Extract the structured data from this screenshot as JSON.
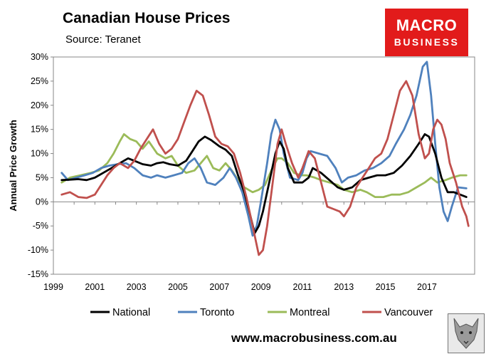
{
  "header": {
    "title": "Canadian House Prices",
    "subtitle": "Source: Teranet"
  },
  "logo": {
    "line1": "MACRO",
    "line2": "BUSINESS"
  },
  "footer": {
    "url": "www.macrobusiness.com.au"
  },
  "colors": {
    "National": "#000000",
    "Toronto": "#4f81bd",
    "Montreal": "#9bbb59",
    "Vancouver": "#c0504d",
    "logo_bg": "#e21b1b"
  },
  "chart_data": {
    "type": "line",
    "title": "Canadian House Prices",
    "ylabel": "Annual Price Growth",
    "xlabel": "",
    "xlim": [
      1999.0,
      2019.3
    ],
    "ylim": [
      -15,
      30
    ],
    "x_ticks": [
      1999,
      2001,
      2003,
      2005,
      2007,
      2009,
      2011,
      2013,
      2015,
      2017
    ],
    "x_tick_labels": [
      "1999",
      "2001",
      "2003",
      "2005",
      "2007",
      "2009",
      "2011",
      "2013",
      "2015",
      "2017"
    ],
    "y_ticks": [
      -15,
      -10,
      -5,
      0,
      5,
      10,
      15,
      20,
      25,
      30
    ],
    "y_tick_labels": [
      "-15%",
      "-10%",
      "-5%",
      "0%",
      "5%",
      "10%",
      "15%",
      "20%",
      "25%",
      "30%"
    ],
    "legend_position": "bottom",
    "grid": false,
    "series": [
      {
        "name": "National",
        "points": [
          [
            1999.4,
            4.5
          ],
          [
            1999.8,
            4.6
          ],
          [
            2000.2,
            4.7
          ],
          [
            2000.6,
            4.5
          ],
          [
            2001.0,
            5.0
          ],
          [
            2001.4,
            6.0
          ],
          [
            2001.8,
            7.0
          ],
          [
            2002.2,
            8.0
          ],
          [
            2002.6,
            9.0
          ],
          [
            2002.9,
            8.5
          ],
          [
            2003.3,
            7.8
          ],
          [
            2003.7,
            7.5
          ],
          [
            2004.0,
            8.0
          ],
          [
            2004.3,
            8.2
          ],
          [
            2004.6,
            7.8
          ],
          [
            2005.0,
            7.5
          ],
          [
            2005.4,
            8.5
          ],
          [
            2005.7,
            10.5
          ],
          [
            2006.0,
            12.5
          ],
          [
            2006.3,
            13.5
          ],
          [
            2006.6,
            12.8
          ],
          [
            2007.0,
            11.5
          ],
          [
            2007.3,
            10.8
          ],
          [
            2007.6,
            9.5
          ],
          [
            2007.9,
            5.5
          ],
          [
            2008.2,
            2.0
          ],
          [
            2008.5,
            -3.0
          ],
          [
            2008.7,
            -6.5
          ],
          [
            2008.9,
            -5.0
          ],
          [
            2009.1,
            -2.0
          ],
          [
            2009.4,
            4.0
          ],
          [
            2009.7,
            10.0
          ],
          [
            2009.9,
            12.5
          ],
          [
            2010.1,
            11.0
          ],
          [
            2010.3,
            7.0
          ],
          [
            2010.6,
            4.0
          ],
          [
            2011.0,
            4.0
          ],
          [
            2011.3,
            5.0
          ],
          [
            2011.5,
            7.0
          ],
          [
            2011.9,
            6.0
          ],
          [
            2012.3,
            4.5
          ],
          [
            2012.7,
            3.0
          ],
          [
            2013.0,
            2.5
          ],
          [
            2013.4,
            3.0
          ],
          [
            2013.8,
            4.5
          ],
          [
            2014.2,
            5.0
          ],
          [
            2014.6,
            5.5
          ],
          [
            2015.0,
            5.5
          ],
          [
            2015.4,
            6.0
          ],
          [
            2015.8,
            7.5
          ],
          [
            2016.2,
            9.5
          ],
          [
            2016.6,
            12.0
          ],
          [
            2016.9,
            14.0
          ],
          [
            2017.1,
            13.5
          ],
          [
            2017.4,
            10.0
          ],
          [
            2017.7,
            5.0
          ],
          [
            2018.0,
            2.0
          ],
          [
            2018.3,
            2.0
          ],
          [
            2018.6,
            1.5
          ],
          [
            2018.9,
            1.0
          ]
        ]
      },
      {
        "name": "Toronto",
        "points": [
          [
            1999.4,
            6.0
          ],
          [
            1999.7,
            4.5
          ],
          [
            2000.1,
            5.0
          ],
          [
            2000.5,
            5.5
          ],
          [
            2000.9,
            6.0
          ],
          [
            2001.3,
            7.0
          ],
          [
            2001.7,
            7.5
          ],
          [
            2002.1,
            7.8
          ],
          [
            2002.5,
            8.0
          ],
          [
            2002.9,
            7.0
          ],
          [
            2003.3,
            5.5
          ],
          [
            2003.7,
            5.0
          ],
          [
            2004.0,
            5.5
          ],
          [
            2004.4,
            5.0
          ],
          [
            2004.8,
            5.5
          ],
          [
            2005.2,
            6.0
          ],
          [
            2005.5,
            8.0
          ],
          [
            2005.8,
            9.0
          ],
          [
            2006.1,
            7.0
          ],
          [
            2006.4,
            4.0
          ],
          [
            2006.8,
            3.5
          ],
          [
            2007.2,
            5.0
          ],
          [
            2007.5,
            7.0
          ],
          [
            2007.8,
            5.0
          ],
          [
            2008.1,
            2.0
          ],
          [
            2008.4,
            -3.0
          ],
          [
            2008.6,
            -7.0
          ],
          [
            2008.8,
            -5.0
          ],
          [
            2009.0,
            0.0
          ],
          [
            2009.3,
            8.0
          ],
          [
            2009.5,
            14.0
          ],
          [
            2009.7,
            17.0
          ],
          [
            2009.9,
            15.0
          ],
          [
            2010.1,
            10.0
          ],
          [
            2010.4,
            5.0
          ],
          [
            2010.8,
            4.5
          ],
          [
            2011.0,
            6.0
          ],
          [
            2011.2,
            9.0
          ],
          [
            2011.4,
            10.5
          ],
          [
            2011.8,
            10.0
          ],
          [
            2012.2,
            9.5
          ],
          [
            2012.6,
            7.0
          ],
          [
            2012.9,
            4.0
          ],
          [
            2013.2,
            5.0
          ],
          [
            2013.6,
            5.5
          ],
          [
            2014.0,
            6.5
          ],
          [
            2014.4,
            7.0
          ],
          [
            2014.8,
            8.0
          ],
          [
            2015.2,
            9.5
          ],
          [
            2015.5,
            12.0
          ],
          [
            2015.9,
            15.0
          ],
          [
            2016.2,
            18.0
          ],
          [
            2016.5,
            22.0
          ],
          [
            2016.8,
            28.0
          ],
          [
            2017.0,
            29.0
          ],
          [
            2017.2,
            22.0
          ],
          [
            2017.4,
            12.0
          ],
          [
            2017.6,
            3.0
          ],
          [
            2017.8,
            -2.0
          ],
          [
            2018.0,
            -4.0
          ],
          [
            2018.2,
            -1.0
          ],
          [
            2018.5,
            3.0
          ],
          [
            2018.9,
            2.8
          ]
        ]
      },
      {
        "name": "Montreal",
        "points": [
          [
            1999.4,
            4.0
          ],
          [
            1999.8,
            5.0
          ],
          [
            2000.3,
            5.5
          ],
          [
            2000.8,
            6.0
          ],
          [
            2001.2,
            6.5
          ],
          [
            2001.6,
            8.0
          ],
          [
            2001.9,
            10.0
          ],
          [
            2002.2,
            12.5
          ],
          [
            2002.4,
            14.0
          ],
          [
            2002.7,
            13.0
          ],
          [
            2003.0,
            12.5
          ],
          [
            2003.3,
            11.0
          ],
          [
            2003.6,
            12.5
          ],
          [
            2004.0,
            10.0
          ],
          [
            2004.4,
            9.0
          ],
          [
            2004.7,
            9.5
          ],
          [
            2005.0,
            7.5
          ],
          [
            2005.4,
            6.0
          ],
          [
            2005.8,
            6.5
          ],
          [
            2006.1,
            8.0
          ],
          [
            2006.4,
            9.5
          ],
          [
            2006.7,
            7.0
          ],
          [
            2007.0,
            6.5
          ],
          [
            2007.3,
            8.0
          ],
          [
            2007.6,
            6.5
          ],
          [
            2007.9,
            4.5
          ],
          [
            2008.2,
            3.0
          ],
          [
            2008.6,
            2.0
          ],
          [
            2008.9,
            2.5
          ],
          [
            2009.2,
            3.5
          ],
          [
            2009.5,
            6.5
          ],
          [
            2009.8,
            9.0
          ],
          [
            2010.0,
            9.0
          ],
          [
            2010.3,
            8.0
          ],
          [
            2010.6,
            6.0
          ],
          [
            2010.9,
            5.5
          ],
          [
            2011.2,
            5.5
          ],
          [
            2011.6,
            5.0
          ],
          [
            2011.9,
            4.5
          ],
          [
            2012.3,
            4.0
          ],
          [
            2012.7,
            3.5
          ],
          [
            2013.0,
            2.5
          ],
          [
            2013.4,
            2.0
          ],
          [
            2013.8,
            2.5
          ],
          [
            2014.1,
            2.0
          ],
          [
            2014.5,
            1.0
          ],
          [
            2014.9,
            1.0
          ],
          [
            2015.3,
            1.5
          ],
          [
            2015.7,
            1.5
          ],
          [
            2016.1,
            2.0
          ],
          [
            2016.5,
            3.0
          ],
          [
            2016.9,
            4.0
          ],
          [
            2017.2,
            5.0
          ],
          [
            2017.5,
            4.0
          ],
          [
            2017.9,
            4.5
          ],
          [
            2018.2,
            5.0
          ],
          [
            2018.6,
            5.5
          ],
          [
            2018.9,
            5.5
          ]
        ]
      },
      {
        "name": "Vancouver",
        "points": [
          [
            1999.4,
            1.5
          ],
          [
            1999.8,
            2.0
          ],
          [
            2000.2,
            1.0
          ],
          [
            2000.6,
            0.8
          ],
          [
            2001.0,
            1.5
          ],
          [
            2001.3,
            3.5
          ],
          [
            2001.6,
            5.5
          ],
          [
            2001.9,
            7.0
          ],
          [
            2002.2,
            8.0
          ],
          [
            2002.6,
            7.0
          ],
          [
            2002.9,
            8.5
          ],
          [
            2003.2,
            11.0
          ],
          [
            2003.5,
            13.0
          ],
          [
            2003.8,
            15.0
          ],
          [
            2004.1,
            12.0
          ],
          [
            2004.4,
            10.0
          ],
          [
            2004.7,
            11.0
          ],
          [
            2005.0,
            13.0
          ],
          [
            2005.3,
            16.5
          ],
          [
            2005.6,
            20.0
          ],
          [
            2005.9,
            23.0
          ],
          [
            2006.2,
            22.0
          ],
          [
            2006.5,
            18.0
          ],
          [
            2006.8,
            13.5
          ],
          [
            2007.1,
            12.0
          ],
          [
            2007.4,
            11.5
          ],
          [
            2007.7,
            10.0
          ],
          [
            2008.0,
            6.0
          ],
          [
            2008.3,
            1.0
          ],
          [
            2008.6,
            -5.0
          ],
          [
            2008.9,
            -11.0
          ],
          [
            2009.1,
            -10.0
          ],
          [
            2009.3,
            -5.0
          ],
          [
            2009.6,
            5.0
          ],
          [
            2009.8,
            12.0
          ],
          [
            2010.0,
            15.0
          ],
          [
            2010.2,
            12.0
          ],
          [
            2010.5,
            8.0
          ],
          [
            2010.8,
            5.0
          ],
          [
            2011.0,
            7.0
          ],
          [
            2011.3,
            10.5
          ],
          [
            2011.6,
            9.0
          ],
          [
            2011.9,
            4.0
          ],
          [
            2012.2,
            -1.0
          ],
          [
            2012.5,
            -1.5
          ],
          [
            2012.8,
            -2.0
          ],
          [
            2013.0,
            -3.0
          ],
          [
            2013.3,
            -1.0
          ],
          [
            2013.6,
            3.0
          ],
          [
            2013.9,
            5.0
          ],
          [
            2014.2,
            7.0
          ],
          [
            2014.5,
            9.0
          ],
          [
            2014.8,
            10.0
          ],
          [
            2015.1,
            13.0
          ],
          [
            2015.4,
            18.0
          ],
          [
            2015.7,
            23.0
          ],
          [
            2016.0,
            25.0
          ],
          [
            2016.3,
            22.0
          ],
          [
            2016.6,
            14.0
          ],
          [
            2016.9,
            9.0
          ],
          [
            2017.1,
            10.0
          ],
          [
            2017.3,
            15.0
          ],
          [
            2017.5,
            17.0
          ],
          [
            2017.7,
            16.0
          ],
          [
            2017.9,
            13.0
          ],
          [
            2018.1,
            8.0
          ],
          [
            2018.4,
            4.0
          ],
          [
            2018.7,
            -1.0
          ],
          [
            2018.9,
            -3.0
          ],
          [
            2019.0,
            -5.0
          ]
        ]
      }
    ]
  }
}
